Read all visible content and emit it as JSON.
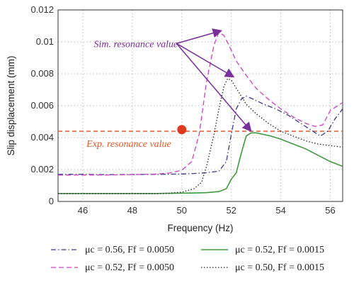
{
  "chart_data": {
    "type": "line",
    "xlabel": "Frequency (Hz)",
    "ylabel": "Slip displacement (mm)",
    "xlim": [
      45,
      56.5
    ],
    "ylim": [
      0,
      0.012
    ],
    "xticks": [
      46,
      48,
      50,
      52,
      54,
      56
    ],
    "yticks": [
      0,
      0.002,
      0.004,
      0.006,
      0.008,
      0.01,
      0.012
    ],
    "xtick_labels": [
      "46",
      "48",
      "50",
      "52",
      "54",
      "56"
    ],
    "ytick_labels": [
      "0",
      "0.002",
      "0.004",
      "0.006",
      "0.008",
      "0.01",
      "0.012"
    ],
    "grid": true,
    "legend_position": "below",
    "series": [
      {
        "id": "s1",
        "name": "μc = 0.56, Ff = 0.0050",
        "color": "#3b3b8c",
        "dash": "dashdot",
        "x": [
          45,
          46,
          47,
          48,
          49,
          50,
          50.5,
          51,
          51.5,
          51.8,
          52.0,
          52.2,
          52.4,
          52.6,
          52.9,
          53.3,
          53.8,
          54.3,
          54.8,
          55.2,
          55.6,
          55.9,
          56.2,
          56.5
        ],
        "y": [
          0.0017,
          0.0017,
          0.00168,
          0.00169,
          0.0017,
          0.00172,
          0.00175,
          0.0018,
          0.0019,
          0.0025,
          0.0042,
          0.0058,
          0.0064,
          0.0066,
          0.0064,
          0.0061,
          0.0058,
          0.0054,
          0.0049,
          0.0045,
          0.0041,
          0.0044,
          0.0052,
          0.0058
        ]
      },
      {
        "id": "s2",
        "name": "μc = 0.52, Ff = 0.0050",
        "color": "#d040c0",
        "dash": "dashed",
        "x": [
          45,
          46,
          47,
          48,
          49,
          49.5,
          50,
          50.4,
          50.7,
          51.0,
          51.3,
          51.5,
          51.7,
          51.9,
          52.2,
          52.6,
          53.0,
          53.5,
          54.0,
          54.5,
          55.0,
          55.4,
          55.7,
          56.0,
          56.5
        ],
        "y": [
          0.00165,
          0.00166,
          0.00166,
          0.00168,
          0.00172,
          0.00178,
          0.00195,
          0.0025,
          0.0042,
          0.0075,
          0.0098,
          0.0106,
          0.0104,
          0.0098,
          0.0088,
          0.0079,
          0.0071,
          0.0064,
          0.0058,
          0.0053,
          0.0049,
          0.0047,
          0.0048,
          0.0057,
          0.0062
        ]
      },
      {
        "id": "s3",
        "name": "μc = 0.52, Ff = 0.0015",
        "color": "#3f9a3f",
        "dash": "solid",
        "x": [
          45,
          46,
          47,
          48,
          49,
          50,
          50.5,
          51,
          51.5,
          51.8,
          52.0,
          52.2,
          52.4,
          52.6,
          52.8,
          53.0,
          53.3,
          53.6,
          54.0,
          54.5,
          55.0,
          55.5,
          56.0,
          56.5
        ],
        "y": [
          0.0005,
          0.0005,
          0.0005,
          0.0005,
          0.0005,
          0.00052,
          0.00053,
          0.00055,
          0.00062,
          0.0008,
          0.0014,
          0.0018,
          0.003,
          0.0041,
          0.0043,
          0.0043,
          0.0042,
          0.0041,
          0.0039,
          0.0036,
          0.0033,
          0.0029,
          0.0025,
          0.0022
        ]
      },
      {
        "id": "s4",
        "name": "μc = 0.50, Ff = 0.0015",
        "color": "#222222",
        "dash": "dotted",
        "x": [
          45,
          46,
          47,
          48,
          49,
          49.5,
          50,
          50.5,
          50.8,
          51.0,
          51.3,
          51.5,
          51.7,
          51.85,
          52.0,
          52.2,
          52.4,
          52.6,
          53.0,
          53.5,
          54.0,
          54.5,
          55.0,
          55.5,
          56.0,
          56.5
        ],
        "y": [
          0.0005,
          0.0005,
          0.0005,
          0.0005,
          0.0005,
          0.00052,
          0.00058,
          0.0008,
          0.0012,
          0.0022,
          0.0042,
          0.0058,
          0.0072,
          0.0077,
          0.0076,
          0.0071,
          0.0066,
          0.0061,
          0.0055,
          0.0049,
          0.0044,
          0.0041,
          0.0038,
          0.0036,
          0.0035,
          0.0034
        ]
      }
    ],
    "reference_line": {
      "y": 0.0044,
      "color": "#e05a2a",
      "dash": "dashed"
    },
    "marker": {
      "x": 50.0,
      "y": 0.0045,
      "color": "#e03a1e"
    },
    "annotations": [
      {
        "id": "sim",
        "text": "Sim. resonance value",
        "color": "#7a2f9a",
        "anchor": {
          "x": 49.9,
          "y": 0.0099
        },
        "arrow_targets": [
          {
            "x": 51.6,
            "y": 0.0107
          },
          {
            "x": 52.1,
            "y": 0.0078
          },
          {
            "x": 52.8,
            "y": 0.0044
          }
        ]
      },
      {
        "id": "exp",
        "text": "Exp. resonance value",
        "color": "#e05a2a",
        "anchor": {
          "x": 49.8,
          "y": 0.0044
        },
        "arrow_targets": []
      }
    ]
  }
}
